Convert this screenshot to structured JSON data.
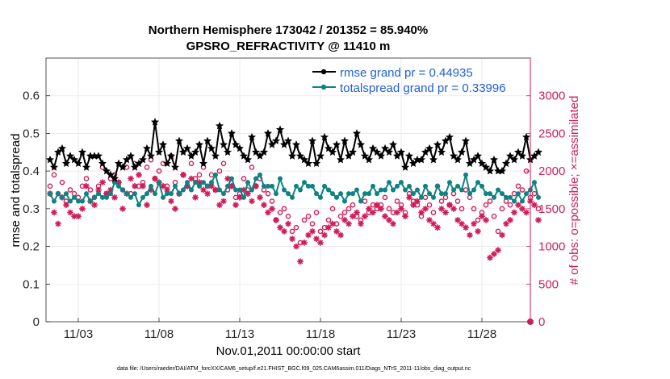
{
  "chart_data": {
    "type": "line",
    "title": "Northern Hemisphere 173042 / 201352 = 85.940%",
    "subtitle": "GPSRO_REFRACTIVITY @ 11410 m",
    "xlabel": "Nov.01,2011 00:00:00 start",
    "ylabel_left": "rmse and totalspread",
    "ylabel_right": "# of obs: o=possible; ×=assimilated",
    "footer": "data file: /Users/raeder/DAI/ATM_forcXX/CAM6_setup/f.e21.FHIST_BGC.f09_025.CAM6assim.011/Diags_NTrS_2011-11/obs_diag_output.nc",
    "xlim": [
      1.0,
      31.0
    ],
    "ylim_left": [
      0,
      0.7
    ],
    "ylim_right": [
      0,
      3500
    ],
    "x_ticks": [
      {
        "value": 3,
        "label": "11/03"
      },
      {
        "value": 8,
        "label": "11/08"
      },
      {
        "value": 13,
        "label": "11/13"
      },
      {
        "value": 18,
        "label": "11/18"
      },
      {
        "value": 23,
        "label": "11/23"
      },
      {
        "value": 28,
        "label": "11/28"
      }
    ],
    "y_ticks_left": [
      {
        "value": 0,
        "label": "0"
      },
      {
        "value": 0.1,
        "label": "0.1"
      },
      {
        "value": 0.2,
        "label": "0.2"
      },
      {
        "value": 0.3,
        "label": "0.3"
      },
      {
        "value": 0.4,
        "label": "0.4"
      },
      {
        "value": 0.5,
        "label": "0.5"
      },
      {
        "value": 0.6,
        "label": "0.6"
      }
    ],
    "y_ticks_right": [
      {
        "value": 0,
        "label": "0"
      },
      {
        "value": 500,
        "label": "500"
      },
      {
        "value": 1000,
        "label": "1000"
      },
      {
        "value": 1500,
        "label": "1500"
      },
      {
        "value": 2000,
        "label": "2000"
      },
      {
        "value": 2500,
        "label": "2500"
      },
      {
        "value": 3000,
        "label": "3000"
      }
    ],
    "legend": [
      {
        "name": "rmse grand pr = 0.44935",
        "color": "#000000"
      },
      {
        "name": "totalspread grand pr = 0.33996",
        "color": "#0f8282"
      }
    ],
    "x_start": 1.25,
    "x_step": 0.25,
    "series": [
      {
        "name": "rmse",
        "axis": "left",
        "color": "#000000",
        "marker": "star",
        "values": [
          0.43,
          0.41,
          0.45,
          0.46,
          0.42,
          0.44,
          0.43,
          0.42,
          0.45,
          0.41,
          0.44,
          0.44,
          0.44,
          0.42,
          0.4,
          0.39,
          0.38,
          0.42,
          0.41,
          0.43,
          0.44,
          0.41,
          0.42,
          0.43,
          0.46,
          0.44,
          0.53,
          0.45,
          0.47,
          0.42,
          0.44,
          0.41,
          0.48,
          0.45,
          0.46,
          0.44,
          0.45,
          0.47,
          0.42,
          0.48,
          0.46,
          0.44,
          0.52,
          0.47,
          0.45,
          0.5,
          0.47,
          0.46,
          0.44,
          0.43,
          0.49,
          0.45,
          0.44,
          0.45,
          0.5,
          0.47,
          0.48,
          0.51,
          0.47,
          0.48,
          0.44,
          0.47,
          0.44,
          0.43,
          0.42,
          0.48,
          0.42,
          0.44,
          0.49,
          0.46,
          0.45,
          0.47,
          0.43,
          0.48,
          0.44,
          0.45,
          0.5,
          0.47,
          0.44,
          0.43,
          0.46,
          0.45,
          0.44,
          0.46,
          0.45,
          0.47,
          0.44,
          0.45,
          0.41,
          0.44,
          0.42,
          0.43,
          0.43,
          0.45,
          0.46,
          0.43,
          0.47,
          0.45,
          0.48,
          0.49,
          0.44,
          0.43,
          0.45,
          0.48,
          0.42,
          0.43,
          0.44,
          0.42,
          0.41,
          0.4,
          0.43,
          0.4,
          0.4,
          0.42,
          0.44,
          0.43,
          0.45,
          0.44,
          0.49,
          0.43,
          0.44,
          0.45
        ]
      },
      {
        "name": "totalspread",
        "axis": "left",
        "color": "#0f8282",
        "marker": "dot",
        "values": [
          0.34,
          0.32,
          0.34,
          0.33,
          0.34,
          0.32,
          0.33,
          0.32,
          0.32,
          0.34,
          0.32,
          0.33,
          0.34,
          0.33,
          0.33,
          0.34,
          0.37,
          0.36,
          0.35,
          0.34,
          0.33,
          0.34,
          0.31,
          0.33,
          0.34,
          0.36,
          0.34,
          0.37,
          0.33,
          0.34,
          0.34,
          0.36,
          0.34,
          0.35,
          0.37,
          0.35,
          0.37,
          0.36,
          0.37,
          0.36,
          0.37,
          0.39,
          0.35,
          0.34,
          0.36,
          0.38,
          0.35,
          0.35,
          0.33,
          0.37,
          0.35,
          0.38,
          0.39,
          0.36,
          0.36,
          0.36,
          0.34,
          0.38,
          0.35,
          0.34,
          0.33,
          0.36,
          0.35,
          0.37,
          0.36,
          0.36,
          0.34,
          0.33,
          0.36,
          0.35,
          0.34,
          0.33,
          0.34,
          0.32,
          0.34,
          0.34,
          0.35,
          0.32,
          0.34,
          0.34,
          0.36,
          0.34,
          0.35,
          0.35,
          0.37,
          0.35,
          0.36,
          0.37,
          0.35,
          0.36,
          0.34,
          0.35,
          0.33,
          0.36,
          0.34,
          0.33,
          0.36,
          0.34,
          0.34,
          0.37,
          0.35,
          0.36,
          0.35,
          0.39,
          0.34,
          0.35,
          0.37,
          0.36,
          0.34,
          0.34,
          0.33,
          0.35,
          0.34,
          0.33,
          0.33,
          0.32,
          0.34,
          0.32,
          0.34,
          0.35,
          0.37,
          0.33
        ]
      },
      {
        "name": "possible",
        "axis": "right",
        "color": "#d01e5a",
        "marker": "circle",
        "values": [
          1800,
          1950,
          1700,
          1850,
          1600,
          1750,
          1700,
          1650,
          1800,
          1900,
          1750,
          1650,
          1800,
          2050,
          1700,
          1900,
          1950,
          1850,
          1750,
          2050,
          1700,
          2100,
          1800,
          1850,
          2050,
          2150,
          1900,
          2000,
          2100,
          1800,
          2200,
          1850,
          1700,
          1950,
          1800,
          2100,
          1900,
          1950,
          2050,
          1800,
          1950,
          1750,
          2000,
          2100,
          1750,
          1800,
          1650,
          1700,
          1900,
          1750,
          2050,
          1800,
          1900,
          1750,
          1700,
          1600,
          1350,
          1450,
          1500,
          1400,
          1200,
          1250,
          1050,
          1350,
          1400,
          1300,
          1450,
          1200,
          1250,
          1350,
          1500,
          1300,
          1400,
          1450,
          1500,
          1550,
          1400,
          1350,
          1600,
          1450,
          1550,
          1500,
          1550,
          1650,
          1500,
          1450,
          1600,
          1550,
          1450,
          1700,
          1600,
          1550,
          1400,
          1650,
          1550,
          1450,
          1800,
          1600,
          1650,
          1550,
          1700,
          1600,
          1500,
          1750,
          1650,
          1500,
          1350,
          1450,
          1550,
          1600,
          1400,
          1200,
          1500,
          1600,
          1550,
          1700,
          1800,
          1750,
          2000,
          1650,
          1700,
          1500
        ]
      },
      {
        "name": "assimilated",
        "axis": "right",
        "color": "#d01e5a",
        "marker": "asterisk",
        "values": [
          1700,
          1450,
          1300,
          1650,
          1550,
          1450,
          1400,
          1400,
          1500,
          1800,
          1600,
          1550,
          1750,
          1850,
          1700,
          1750,
          1650,
          1850,
          1500,
          1700,
          1900,
          1800,
          1950,
          1800,
          1550,
          1750,
          1900,
          1850,
          1800,
          1750,
          1600,
          1500,
          1700,
          1950,
          1800,
          1900,
          1650,
          1850,
          1750,
          1700,
          1800,
          1750,
          1550,
          1600,
          1900,
          1800,
          1550,
          1650,
          1750,
          1700,
          1600,
          1800,
          1650,
          1550,
          1450,
          1500,
          1350,
          1250,
          1200,
          1300,
          1100,
          1000,
          800,
          1050,
          1150,
          1200,
          1100,
          1050,
          1150,
          1250,
          1300,
          1200,
          1150,
          1350,
          1300,
          1400,
          1450,
          1300,
          1400,
          1500,
          1450,
          1550,
          1500,
          1400,
          1350,
          1300,
          1450,
          1500,
          1400,
          1650,
          1550,
          1600,
          1450,
          1500,
          1350,
          1300,
          1250,
          1500,
          1450,
          1550,
          1500,
          1350,
          1300,
          1250,
          1150,
          1300,
          1200,
          1400,
          1350,
          850,
          900,
          950,
          1150,
          1300,
          1350,
          1450,
          1550,
          1500,
          1450,
          1600,
          1550,
          1350
        ]
      }
    ]
  }
}
